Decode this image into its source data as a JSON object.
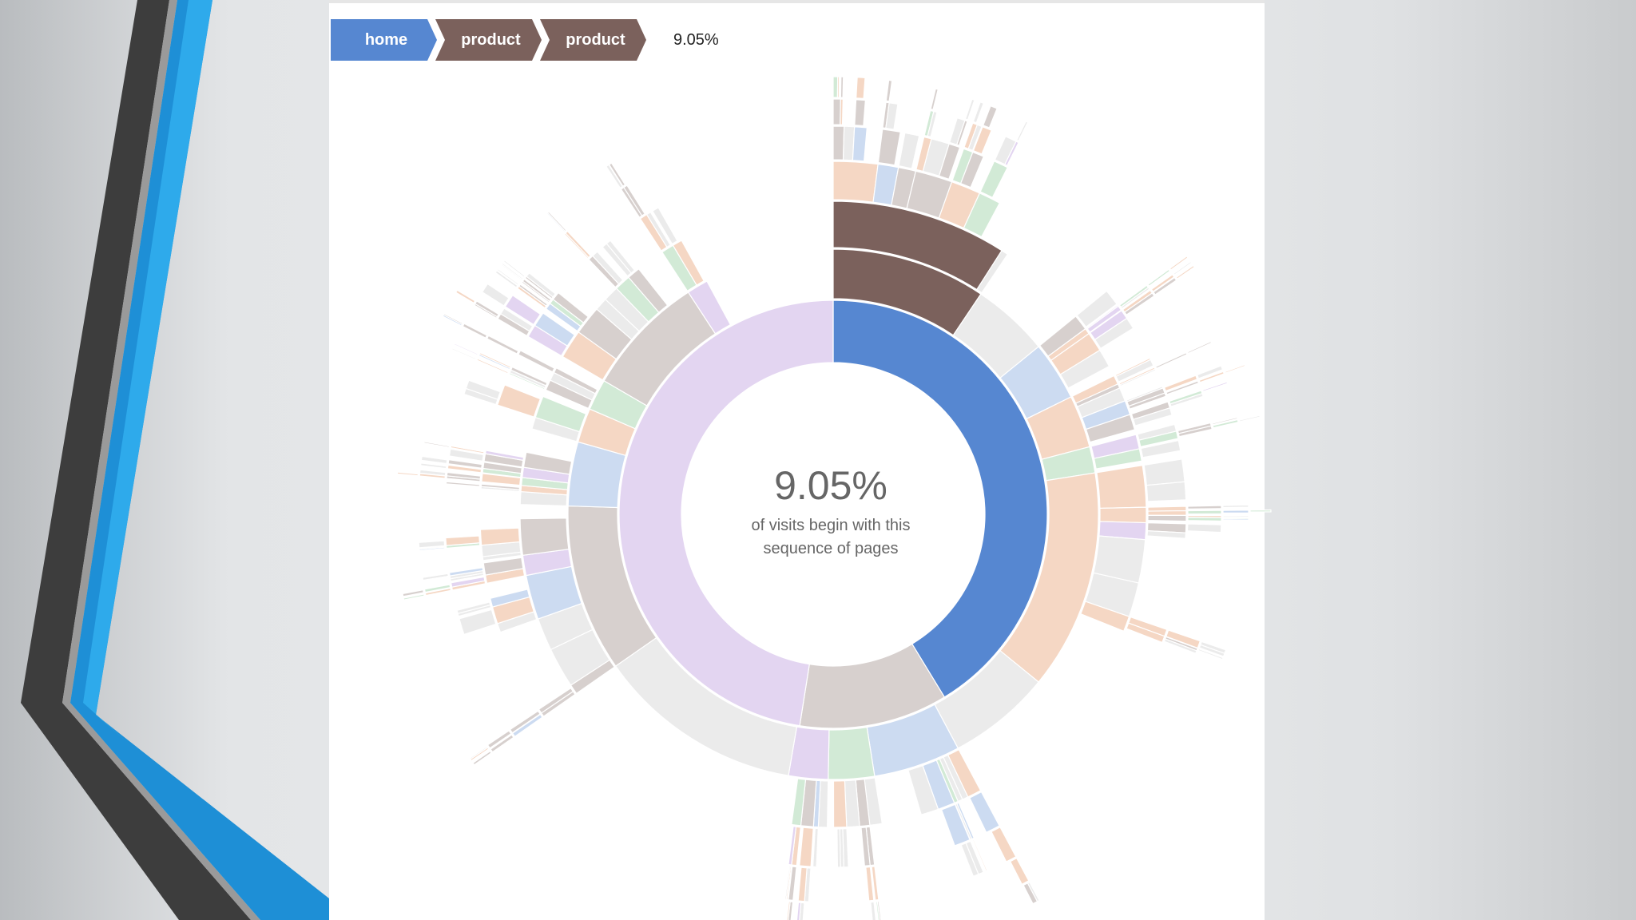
{
  "breadcrumb": {
    "items": [
      {
        "label": "home",
        "color": "#5687d1"
      },
      {
        "label": "product",
        "color": "#7b615c"
      },
      {
        "label": "product",
        "color": "#7b615c"
      }
    ],
    "percentage": "9.05%"
  },
  "center": {
    "percentage": "9.05%",
    "line1": "of visits begin with this",
    "line2": "sequence of pages"
  },
  "chart_data": {
    "type": "sunburst",
    "unit": "% of visits",
    "selected_sequence": [
      "home",
      "product",
      "product"
    ],
    "selected_percentage": 9.05,
    "colors": {
      "home": "#5687d1",
      "product": "#7b615c",
      "search": "#de783b",
      "account": "#6ab975",
      "other": "#a173d1",
      "end": "#bbbbbb"
    },
    "faded_opacity": 0.3,
    "rings": [
      {
        "depth": 1,
        "segments": [
          {
            "name": "home",
            "share": 0.413
          },
          {
            "name": "product",
            "share": 0.112
          },
          {
            "name": "other",
            "share": 0.475
          }
        ]
      },
      {
        "depth": 2,
        "segments": [
          {
            "name": "product",
            "share": 0.094
          },
          {
            "name": "end",
            "share": 0.047
          },
          {
            "name": "home",
            "share": 0.036
          },
          {
            "name": "search",
            "share": 0.032
          },
          {
            "name": "account",
            "share": 0.016
          },
          {
            "name": "search",
            "share": 0.134
          },
          {
            "name": "end",
            "share": 0.063
          },
          {
            "name": "home",
            "share": 0.053
          },
          {
            "name": "account",
            "share": 0.028
          },
          {
            "name": "other",
            "share": 0.024
          },
          {
            "name": "end",
            "share": 0.126
          },
          {
            "name": "product",
            "share": 0.102
          },
          {
            "name": "home",
            "share": 0.039
          },
          {
            "name": "search",
            "share": 0.021
          },
          {
            "name": "account",
            "share": 0.019
          },
          {
            "name": "product",
            "share": 0.074
          },
          {
            "name": "other",
            "share": 0.013
          }
        ]
      }
    ]
  }
}
